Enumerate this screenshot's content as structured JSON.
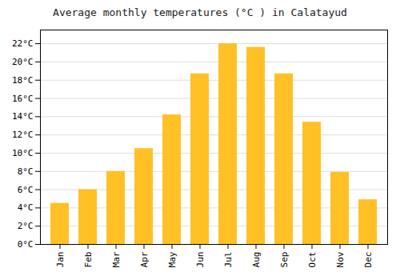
{
  "chart_data": {
    "type": "bar",
    "title": "Average monthly temperatures (°C ) in Calatayud",
    "categories": [
      "Jan",
      "Feb",
      "Mar",
      "Apr",
      "May",
      "Jun",
      "Jul",
      "Aug",
      "Sep",
      "Oct",
      "Nov",
      "Dec"
    ],
    "values": [
      4.5,
      6.0,
      8.0,
      10.5,
      14.2,
      18.7,
      22.0,
      21.6,
      18.7,
      13.4,
      7.9,
      4.9
    ],
    "color": "#FFC125",
    "ylim": [
      0,
      23.5
    ],
    "yticks": [
      {
        "value": 0,
        "label": "0°C"
      },
      {
        "value": 2,
        "label": "2°C"
      },
      {
        "value": 4,
        "label": "4°C"
      },
      {
        "value": 6,
        "label": "6°C"
      },
      {
        "value": 8,
        "label": "8°C"
      },
      {
        "value": 10,
        "label": "10°C"
      },
      {
        "value": 12,
        "label": "12°C"
      },
      {
        "value": 14,
        "label": "14°C"
      },
      {
        "value": 16,
        "label": "16°C"
      },
      {
        "value": 18,
        "label": "18°C"
      },
      {
        "value": 20,
        "label": "20°C"
      },
      {
        "value": 22,
        "label": "22°C"
      }
    ],
    "grid": true
  }
}
